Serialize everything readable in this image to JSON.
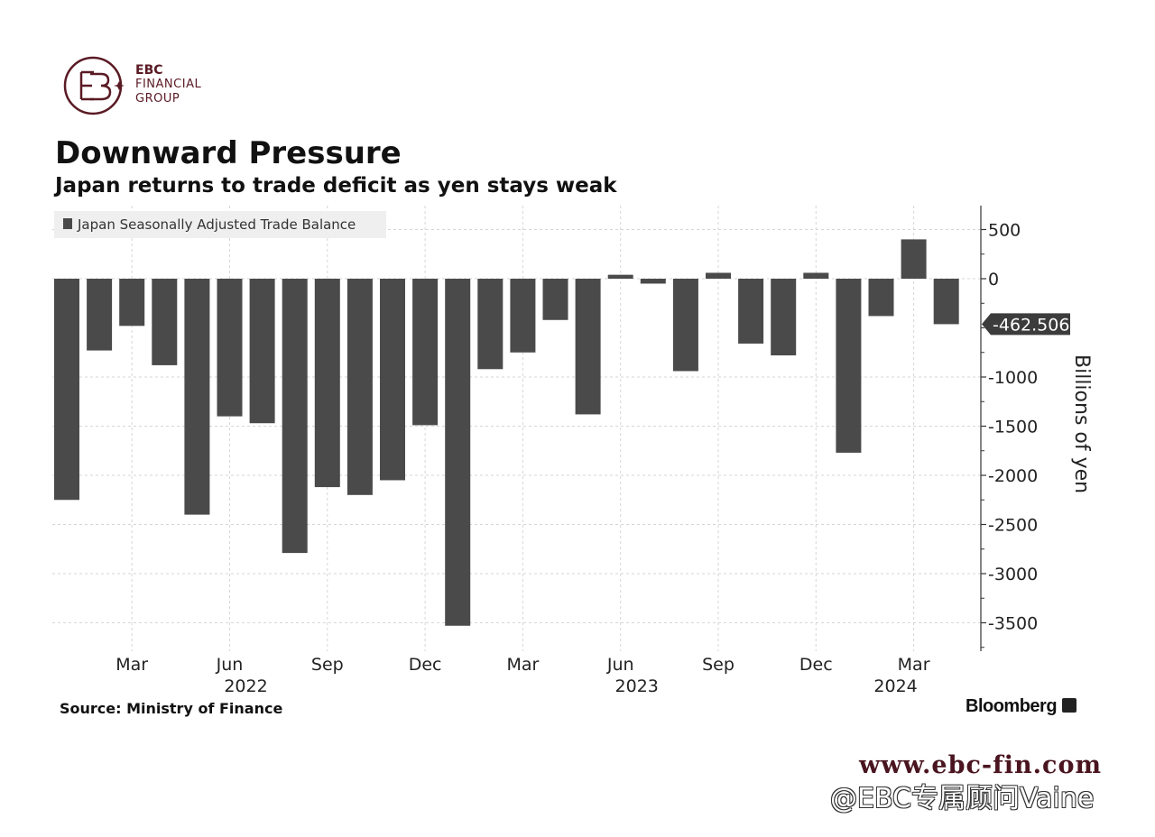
{
  "logo": {
    "line1": "EBC",
    "line2": "FINANCIAL",
    "line3": "GROUP",
    "color": "#5a1a24"
  },
  "title": "Downward Pressure",
  "subtitle": "Japan returns to trade deficit as yen stays weak",
  "source": "Source: Ministry of Finance",
  "brand": "Bloomberg",
  "website": "www.ebc-fin.com",
  "weibo": "@EBC专属顾问Vaine",
  "chart_data": {
    "type": "bar",
    "series": [
      {
        "name": "Japan Seasonally Adjusted Trade Balance",
        "color": "#4a4a4a",
        "x": [
          "2022-01",
          "2022-02",
          "2022-03",
          "2022-04",
          "2022-05",
          "2022-06",
          "2022-07",
          "2022-08",
          "2022-09",
          "2022-10",
          "2022-11",
          "2022-12",
          "2023-01",
          "2023-02",
          "2023-03",
          "2023-04",
          "2023-05",
          "2023-06",
          "2023-07",
          "2023-08",
          "2023-09",
          "2023-10",
          "2023-11",
          "2023-12",
          "2024-01",
          "2024-02",
          "2024-03",
          "2024-04"
        ],
        "values": [
          -2250,
          -730,
          -480,
          -880,
          -2400,
          -1400,
          -1470,
          -2790,
          -2120,
          -2200,
          -2050,
          -1490,
          -3530,
          -920,
          -750,
          -420,
          -1380,
          40,
          -50,
          -940,
          60,
          -660,
          -780,
          60,
          -1770,
          -380,
          400,
          -462.506
        ]
      }
    ],
    "last_value_label": "-462.506",
    "ylabel": "Billions of yen",
    "ylim": [
      -3900,
      780
    ],
    "yticks": [
      500,
      0,
      -1000,
      -1500,
      -2000,
      -2500,
      -3000,
      -3500
    ],
    "ytick_labels": [
      "500",
      "0",
      "-1000",
      "-1500",
      "-2000",
      "-2500",
      "-3000",
      "-3500"
    ],
    "xtick_labels": [
      {
        "x": "2022-03",
        "label": "Mar"
      },
      {
        "x": "2022-06",
        "label": "Jun"
      },
      {
        "x": "2022-09",
        "label": "Sep"
      },
      {
        "x": "2022-12",
        "label": "Dec"
      },
      {
        "x": "2023-03",
        "label": "Mar"
      },
      {
        "x": "2023-06",
        "label": "Jun"
      },
      {
        "x": "2023-09",
        "label": "Sep"
      },
      {
        "x": "2023-12",
        "label": "Dec"
      },
      {
        "x": "2024-03",
        "label": "Mar"
      }
    ],
    "year_labels": [
      {
        "x": "2022-06",
        "label": "2022"
      },
      {
        "x": "2023-06",
        "label": "2023"
      },
      {
        "x": "2024-03",
        "label": "2024"
      }
    ],
    "grid": true,
    "legend_position": "top-left"
  }
}
